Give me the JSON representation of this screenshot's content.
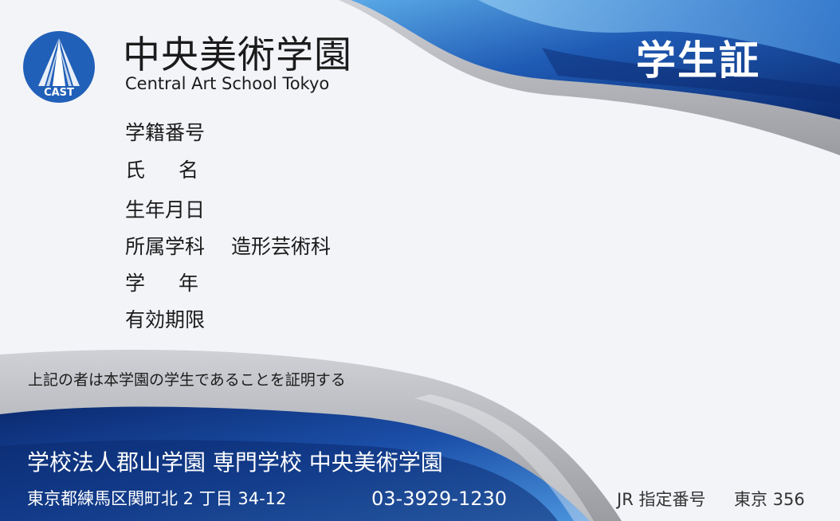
{
  "colors": {
    "navy": "#0d2f7a",
    "blue": "#1f5bb5",
    "light_blue": "#5aa9e6",
    "gray_band": "#b9bbc0",
    "card_bg": "#f3f4f8"
  },
  "logo": {
    "text": "CAST",
    "icon": "tower-logo-icon"
  },
  "school": {
    "name_jp": "中央美術学園",
    "name_en": "Central Art School Tokyo"
  },
  "card_title": "学生証",
  "fields": {
    "student_id": {
      "label": "学籍番号",
      "value": ""
    },
    "name": {
      "label": "氏名",
      "value": ""
    },
    "birthdate": {
      "label": "生年月日",
      "value": ""
    },
    "department": {
      "label": "所属学科",
      "value": "造形芸術科"
    },
    "grade": {
      "label": "学年",
      "value": ""
    },
    "expiry": {
      "label": "有効期限",
      "value": ""
    }
  },
  "certification_text": "上記の者は本学園の学生であることを証明する",
  "footer": {
    "school_full": "学校法人郡山学園  専門学校 中央美術学園",
    "address": "東京都練馬区関町北 2 丁目 34-12",
    "phone": "03-3929-1230",
    "jr_label": "JR 指定番号",
    "jr_value": "東京 356"
  }
}
